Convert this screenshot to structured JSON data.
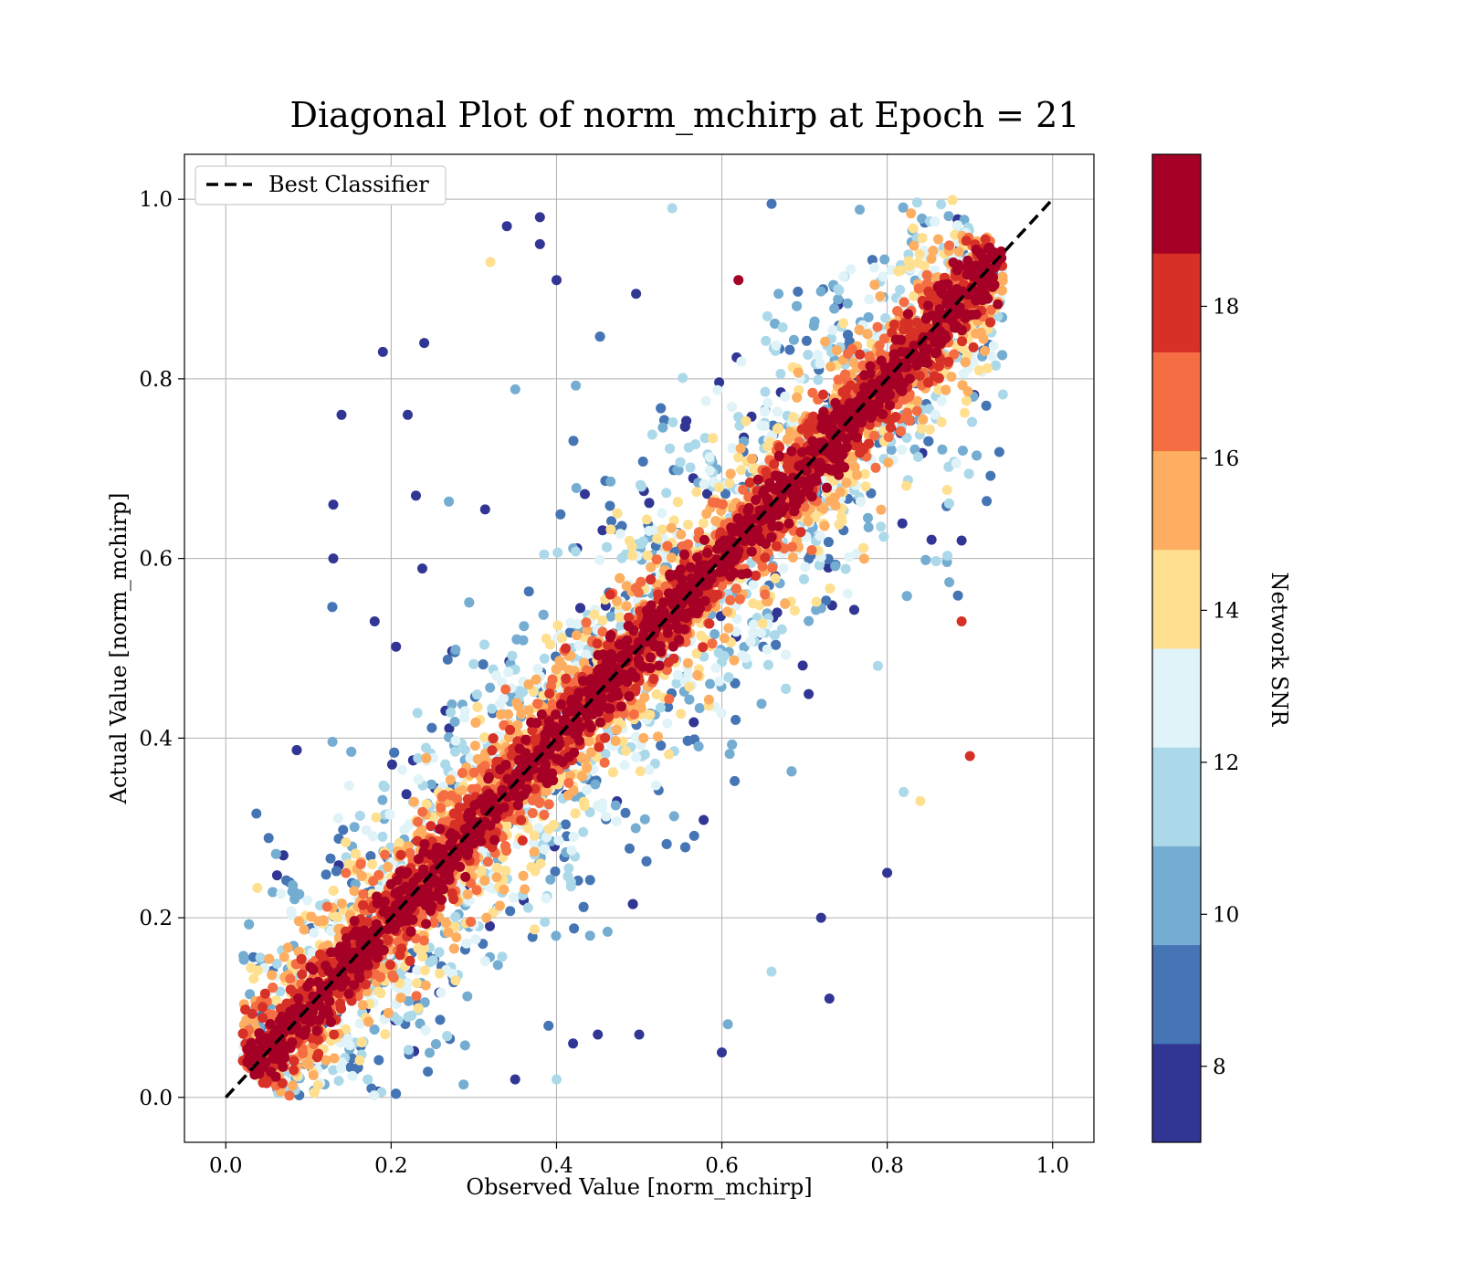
{
  "chart_data": {
    "type": "scatter",
    "title": "Diagonal Plot of norm_mchirp at Epoch = 21",
    "xlabel": "Observed Value [norm_mchirp]",
    "ylabel": "Actual Value [norm_mchirp]",
    "xlim": [
      -0.05,
      1.05
    ],
    "ylim": [
      -0.05,
      1.05
    ],
    "xticks": [
      "0.0",
      "0.2",
      "0.4",
      "0.6",
      "0.8",
      "1.0"
    ],
    "yticks": [
      "0.0",
      "0.2",
      "0.4",
      "0.6",
      "0.8",
      "1.0"
    ],
    "grid": true,
    "legend": {
      "placement": "top-left",
      "entries": [
        "Best Classifier"
      ]
    },
    "reference_line": {
      "name": "Best Classifier",
      "style": "dashed",
      "color": "#000000",
      "x": [
        0.0,
        1.0
      ],
      "y": [
        0.0,
        1.0
      ]
    },
    "colorbar": {
      "label": "Network SNR",
      "range": [
        7,
        20
      ],
      "ticks": [
        "8",
        "10",
        "12",
        "14",
        "16",
        "18"
      ],
      "levels": [
        7,
        8.3,
        9.6,
        10.9,
        12.2,
        13.5,
        14.8,
        16.1,
        17.4,
        18.7,
        20
      ],
      "colors": [
        "#313695",
        "#4575b4",
        "#74add1",
        "#abd9e9",
        "#e0f3f8",
        "#fee090",
        "#fdae61",
        "#f46d43",
        "#d73027",
        "#a50026"
      ]
    },
    "series": [
      {
        "description_of_cloud": "dense scatter clustered around y = x, spread grows at lower SNR",
        "points_sample": [
          [
            0.14,
            0.76,
            7.5
          ],
          [
            0.19,
            0.83,
            7.5
          ],
          [
            0.24,
            0.84,
            7.5
          ],
          [
            0.22,
            0.76,
            7.5
          ],
          [
            0.34,
            0.97,
            7.5
          ],
          [
            0.38,
            0.98,
            7.5
          ],
          [
            0.38,
            0.95,
            7.5
          ],
          [
            0.4,
            0.91,
            7.5
          ],
          [
            0.13,
            0.66,
            7.5
          ],
          [
            0.13,
            0.6,
            7.5
          ],
          [
            0.23,
            0.67,
            7.5
          ],
          [
            0.18,
            0.53,
            7.5
          ],
          [
            0.54,
            0.99,
            11.5
          ],
          [
            0.32,
            0.93,
            13.5
          ],
          [
            0.62,
            0.91,
            19
          ],
          [
            0.9,
            0.38,
            18.5
          ],
          [
            0.89,
            0.53,
            18.5
          ],
          [
            0.89,
            0.62,
            7.5
          ],
          [
            0.8,
            0.25,
            7.5
          ],
          [
            0.73,
            0.11,
            7.5
          ],
          [
            0.72,
            0.2,
            7.5
          ],
          [
            0.6,
            0.05,
            7.5
          ],
          [
            0.4,
            0.02,
            11.5
          ],
          [
            0.35,
            0.02,
            7.5
          ],
          [
            0.84,
            0.33,
            13.5
          ],
          [
            0.82,
            0.34,
            11.5
          ],
          [
            0.66,
            0.14,
            11.5
          ],
          [
            0.45,
            0.07,
            7.5
          ],
          [
            0.42,
            0.06,
            7.5
          ],
          [
            0.5,
            0.07,
            7.5
          ]
        ]
      }
    ]
  }
}
